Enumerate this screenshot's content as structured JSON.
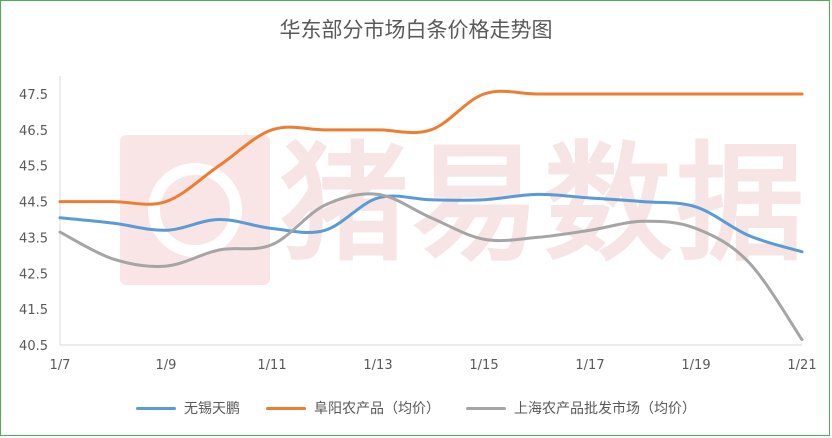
{
  "watermark": {
    "text": "猪易数据"
  },
  "chart_data": {
    "type": "line",
    "title": "华东部分市场白条价格走势图",
    "xlabel": "",
    "ylabel": "",
    "categories": [
      "1/7",
      "1/8",
      "1/9",
      "1/10",
      "1/11",
      "1/12",
      "1/13",
      "1/14",
      "1/15",
      "1/16",
      "1/17",
      "1/18",
      "1/19",
      "1/20",
      "1/21"
    ],
    "x_tick_labels": [
      "1/7",
      "1/9",
      "1/11",
      "1/13",
      "1/15",
      "1/17",
      "1/19",
      "1/21"
    ],
    "y_tick_labels": [
      "40.5",
      "41.5",
      "42.5",
      "43.5",
      "44.5",
      "45.5",
      "46.5",
      "47.5"
    ],
    "ylim": [
      40.5,
      47.5
    ],
    "grid": false,
    "legend_position": "bottom",
    "series": [
      {
        "name": "无锡天鹏",
        "color": "#5b9bd5",
        "values": [
          44.05,
          43.9,
          43.7,
          44.0,
          43.75,
          43.7,
          44.6,
          44.55,
          44.55,
          44.7,
          44.6,
          44.5,
          44.35,
          43.55,
          43.1
        ]
      },
      {
        "name": "阜阳农产品（均价）",
        "color": "#ed7d31",
        "values": [
          44.5,
          44.5,
          44.5,
          45.5,
          46.5,
          46.5,
          46.5,
          46.5,
          47.5,
          47.5,
          47.5,
          47.5,
          47.5,
          47.5,
          47.5
        ]
      },
      {
        "name": "上海农产品批发市场（均价）",
        "color": "#a5a5a5",
        "values": [
          43.65,
          42.9,
          42.7,
          43.15,
          43.3,
          44.4,
          44.7,
          44.05,
          43.45,
          43.5,
          43.7,
          43.95,
          43.75,
          42.8,
          40.65
        ]
      }
    ]
  }
}
